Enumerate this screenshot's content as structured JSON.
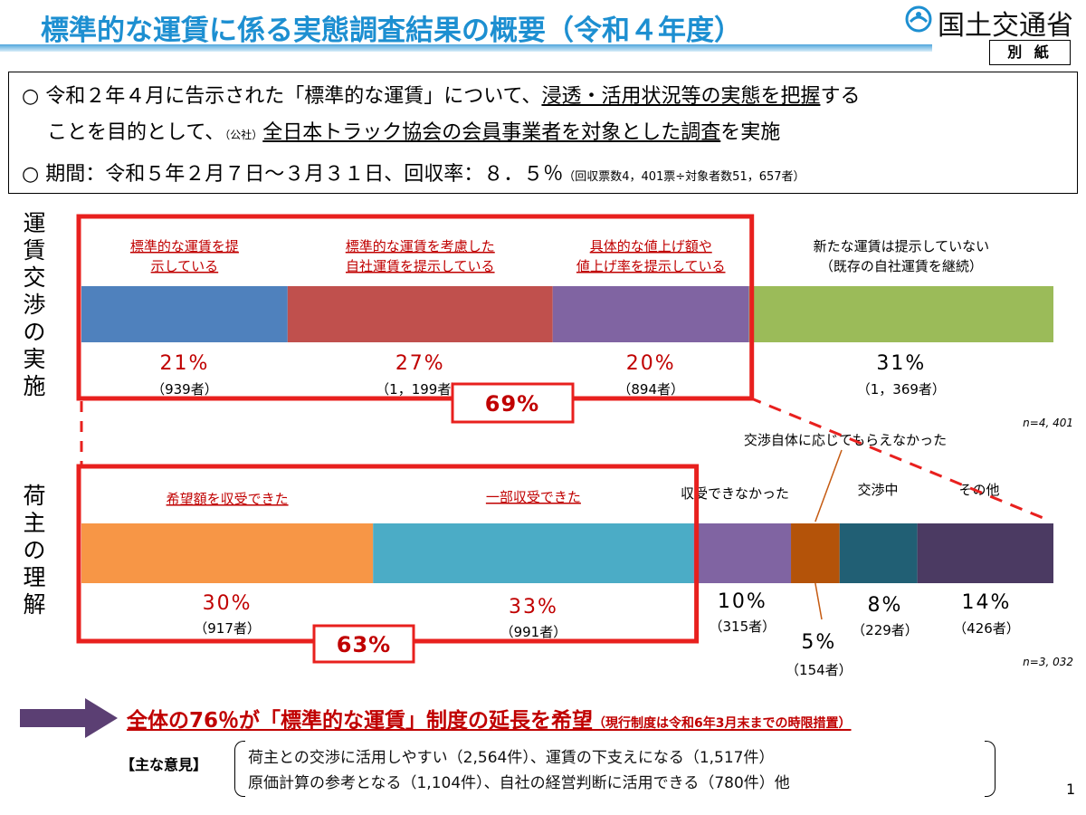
{
  "header": {
    "title": "標準的な運賃に係る実態調査結果の概要（令和４年度）",
    "ministry": "国土交通省",
    "attachment_label": "別 紙"
  },
  "info": {
    "line1_a": "○ 令和２年４月に告示された「標準的な運賃」について、",
    "line1_b": "浸透・活用状況等の実態を把握",
    "line1_c": "する",
    "line2_a": "ことを目的として、",
    "line2_small": "（公社）",
    "line2_b": "全日本トラック協会の会員事業者を対象とした調査",
    "line2_c": "を実施",
    "line3_a": "○ 期間：令和５年２月７日～３月３１日、回収率：８．５％",
    "line3_small": "（回収票数4，401票÷対象者数51，657者）"
  },
  "section_labels": {
    "negotiation": "運賃交渉の実施",
    "shipper": "荷主の理解"
  },
  "chart_data": [
    {
      "type": "bar",
      "orientation": "horizontal-stacked-100",
      "title": "運賃交渉の実施",
      "n_label": "n=4, 401",
      "categories": [
        "標準的な運賃を提示している",
        "標準的な運賃を考慮した自社運賃を提示している",
        "具体的な値上げ額や値上げ率を提示している",
        "新たな運賃は提示していない（既存の自社運賃を継続）"
      ],
      "values": [
        21,
        27,
        20,
        31
      ],
      "percent_labels": [
        "21%",
        "27%",
        "20%",
        "31%"
      ],
      "counts": [
        "（939者）",
        "（1，199者）",
        "（894者）",
        "（1，369者）"
      ],
      "colors": [
        "#4f81bd",
        "#c0504d",
        "#8064a2",
        "#9bbb59"
      ],
      "label_lines": [
        [
          "標準的な運賃を提",
          "示している"
        ],
        [
          "標準的な運賃を考慮した",
          "自社運賃を提示している"
        ],
        [
          "具体的な値上げ額や",
          "値上げ率を提示している"
        ],
        [
          "新たな運賃は提示していない",
          "（既存の自社運賃を継続）"
        ]
      ],
      "highlight_total": "69%"
    },
    {
      "type": "bar",
      "orientation": "horizontal-stacked-100",
      "title": "荷主の理解",
      "n_label": "n=3, 032",
      "categories": [
        "希望額を収受できた",
        "一部収受できた",
        "収受できなかった",
        "交渉自体に応じてもらえなかった",
        "交渉中",
        "その他"
      ],
      "values": [
        30,
        33,
        10,
        5,
        8,
        14
      ],
      "percent_labels": [
        "30%",
        "33%",
        "10%",
        "5%",
        "8%",
        "14%"
      ],
      "counts": [
        "（917者）",
        "（991者）",
        "（315者）",
        "（154者）",
        "（229者）",
        "（426者）"
      ],
      "colors": [
        "#f79646",
        "#4bacc6",
        "#8064a2",
        "#b45309",
        "#215f74",
        "#4b3a62"
      ],
      "highlight_total": "63%"
    }
  ],
  "conclusion": {
    "main": "全体の76％が「標準的な運賃」制度の延長を希望",
    "note": "（現行制度は令和6年3月末までの時限措置）"
  },
  "opinions": {
    "label": "【主な意見】",
    "line1": "荷主との交渉に活用しやすい（2,564件）、運賃の下支えになる（1,517件）",
    "line2": "原価計算の参考となる（1,104件）、自社の経営判断に活用できる（780件）他"
  },
  "page_number": "1",
  "colors": {
    "title_blue": "#1d8fd1",
    "highlight_red": "#e8201e",
    "arrow_purple": "#5b3f73"
  }
}
